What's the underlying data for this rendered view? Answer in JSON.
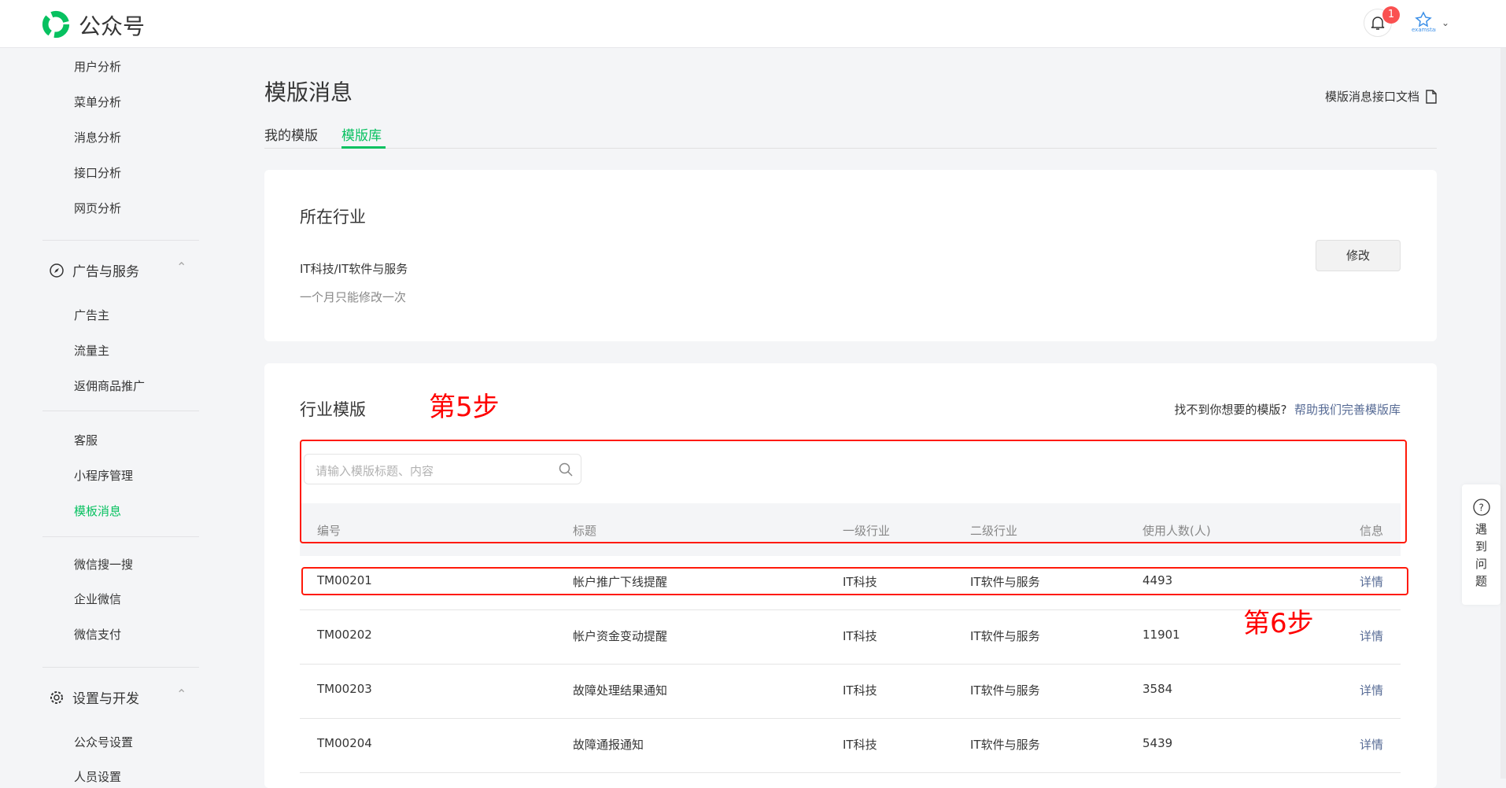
{
  "header": {
    "brand": "公众号",
    "notification_count": "1",
    "avatar_text": "examstar"
  },
  "sidebar": {
    "items_top": [
      "用户分析",
      "菜单分析",
      "消息分析",
      "接口分析",
      "网页分析"
    ],
    "group_ads": "广告与服务",
    "items_ads": [
      "广告主",
      "流量主",
      "返佣商品推广"
    ],
    "items_mid": [
      "客服",
      "小程序管理",
      "模板消息"
    ],
    "items_mid2": [
      "微信搜一搜",
      "企业微信",
      "微信支付"
    ],
    "group_dev": "设置与开发",
    "items_dev": [
      "公众号设置",
      "人员设置"
    ]
  },
  "page": {
    "title": "模版消息",
    "doc_link": "模版消息接口文档",
    "tabs": [
      "我的模版",
      "模版库"
    ],
    "active_tab": "模版库"
  },
  "industry": {
    "heading": "所在行业",
    "value": "IT科技/IT软件与服务",
    "note": "一个月只能修改一次",
    "edit_button": "修改"
  },
  "templates": {
    "heading": "行业模版",
    "prompt": "找不到你想要的模版?",
    "help_link": "帮助我们完善模版库",
    "search_placeholder": "请输入模版标题、内容",
    "columns": [
      "编号",
      "标题",
      "一级行业",
      "二级行业",
      "使用人数(人)",
      "信息"
    ],
    "rows": [
      [
        "TM00201",
        "帐户推广下线提醒",
        "IT科技",
        "IT软件与服务",
        "4493",
        "详情"
      ],
      [
        "TM00202",
        "帐户资金变动提醒",
        "IT科技",
        "IT软件与服务",
        "11901",
        "详情"
      ],
      [
        "TM00203",
        "故障处理结果通知",
        "IT科技",
        "IT软件与服务",
        "3584",
        "详情"
      ],
      [
        "TM00204",
        "故障通报通知",
        "IT科技",
        "IT软件与服务",
        "5439",
        "详情"
      ]
    ]
  },
  "annotations": {
    "step5": "第5步",
    "step6": "第6步"
  },
  "help": {
    "label": [
      "遇",
      "到",
      "问",
      "题"
    ]
  },
  "colors": {
    "accent": "#07c160",
    "link": "#576b95",
    "annotation": "#ff0000",
    "badge": "#fa5151"
  }
}
